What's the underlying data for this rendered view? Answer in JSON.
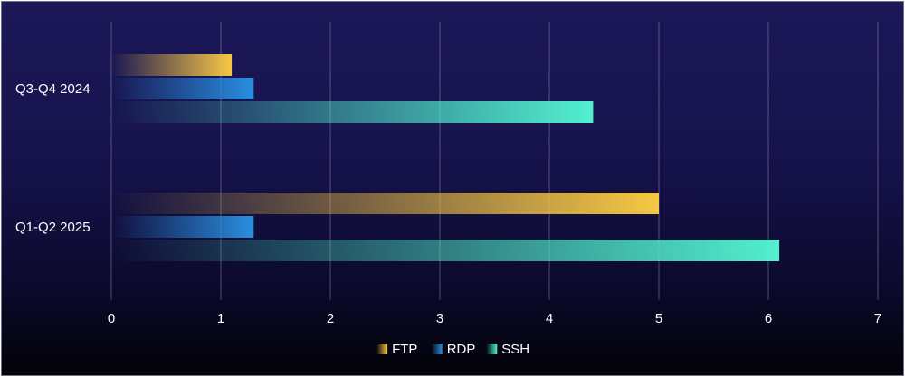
{
  "chart_data": {
    "type": "bar",
    "orientation": "horizontal",
    "categories": [
      "Q3-Q4 2024",
      "Q1-Q2 2025"
    ],
    "series": [
      {
        "name": "FTP",
        "values": [
          1.1,
          5.0
        ],
        "color": "#f7c844"
      },
      {
        "name": "RDP",
        "values": [
          1.3,
          1.3
        ],
        "color": "#2a8fe0"
      },
      {
        "name": "SSH",
        "values": [
          4.4,
          6.1
        ],
        "color": "#52f0cf"
      }
    ],
    "xlim": [
      0,
      7
    ],
    "xticks": [
      "0",
      "1",
      "2",
      "3",
      "4",
      "5",
      "6",
      "7"
    ],
    "grid": true,
    "legend": "bottom"
  }
}
